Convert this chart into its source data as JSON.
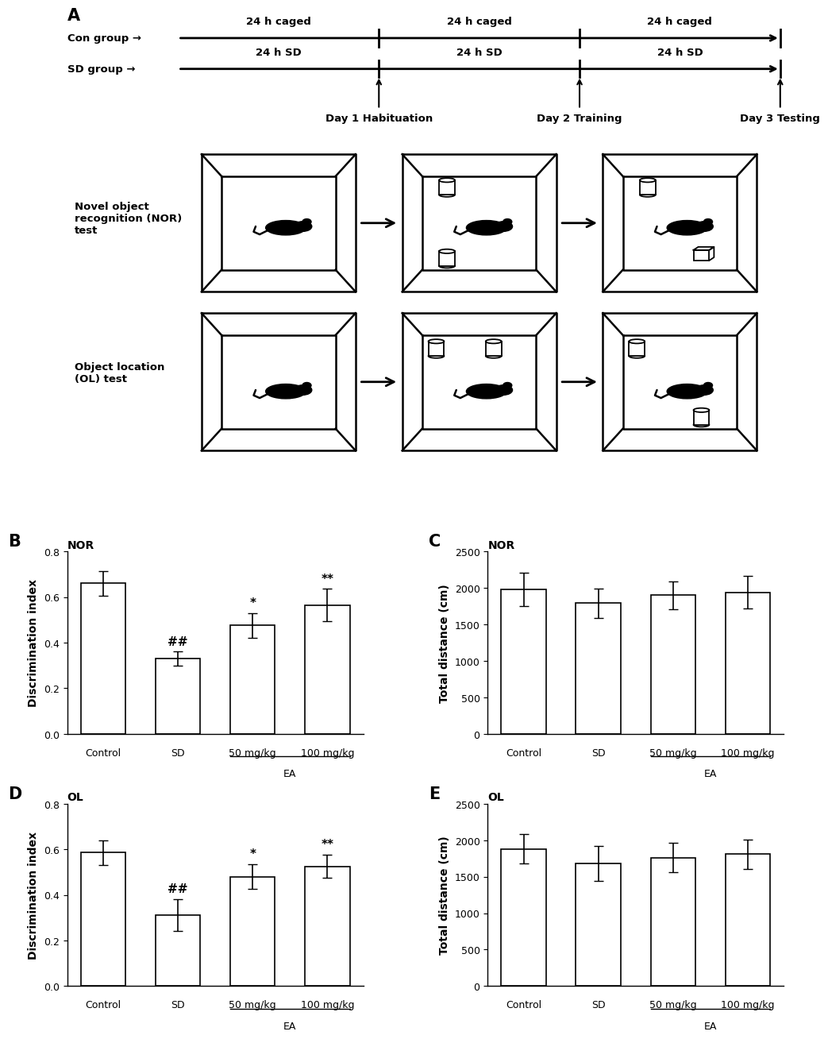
{
  "panel_labels": [
    "A",
    "B",
    "C",
    "D",
    "E"
  ],
  "timeline_con_label": "Con group →",
  "timeline_sd_label": "SD group →",
  "timeline_labels": [
    "24 h caged",
    "24 h caged",
    "24 h caged"
  ],
  "timeline_sd_labels": [
    "24 h SD",
    "24 h SD",
    "24 h SD"
  ],
  "day_labels": [
    "Day 1 Habituation",
    "Day 2 Training",
    "Day 3 Testing"
  ],
  "NOR_label": "Novel object\nrecognition (NOR)\ntest",
  "OL_label": "Object location\n(OL) test",
  "categories": [
    "Control",
    "SD",
    "50 mg/kg",
    "100 mg/kg"
  ],
  "xlabel_ea": "EA",
  "B_title": "NOR",
  "B_ylabel": "Discrimination index",
  "B_values": [
    0.66,
    0.33,
    0.475,
    0.565
  ],
  "B_errors": [
    0.055,
    0.03,
    0.055,
    0.07
  ],
  "B_ylim": [
    0.0,
    0.8
  ],
  "B_yticks": [
    0.0,
    0.2,
    0.4,
    0.6,
    0.8
  ],
  "B_annotations": [
    "",
    "##",
    "*",
    "**"
  ],
  "C_title": "NOR",
  "C_ylabel": "Total distance (cm)",
  "C_values": [
    1980,
    1790,
    1900,
    1940
  ],
  "C_errors": [
    230,
    200,
    190,
    220
  ],
  "C_ylim": [
    0,
    2500
  ],
  "C_yticks": [
    0,
    500,
    1000,
    1500,
    2000,
    2500
  ],
  "C_annotations": [
    "",
    "",
    "",
    ""
  ],
  "D_title": "OL",
  "D_ylabel": "Discrimination index",
  "D_values": [
    0.585,
    0.31,
    0.48,
    0.525
  ],
  "D_errors": [
    0.055,
    0.07,
    0.055,
    0.05
  ],
  "D_ylim": [
    0.0,
    0.8
  ],
  "D_yticks": [
    0.0,
    0.2,
    0.4,
    0.6,
    0.8
  ],
  "D_annotations": [
    "",
    "##",
    "*",
    "**"
  ],
  "E_title": "OL",
  "E_ylabel": "Total distance (cm)",
  "E_values": [
    1880,
    1680,
    1760,
    1810
  ],
  "E_errors": [
    200,
    240,
    200,
    200
  ],
  "E_ylim": [
    0,
    2500
  ],
  "E_yticks": [
    0,
    500,
    1000,
    1500,
    2000,
    2500
  ],
  "E_annotations": [
    "",
    "",
    "",
    ""
  ],
  "bar_color": "#ffffff",
  "bar_edgecolor": "#000000",
  "bar_linewidth": 1.2,
  "error_color": "#000000",
  "error_capsize": 4,
  "error_linewidth": 1.2,
  "background_color": "#ffffff",
  "tick_fontsize": 9,
  "label_fontsize": 10,
  "title_fontsize": 10,
  "annot_fontsize": 11,
  "panel_label_fontsize": 15
}
